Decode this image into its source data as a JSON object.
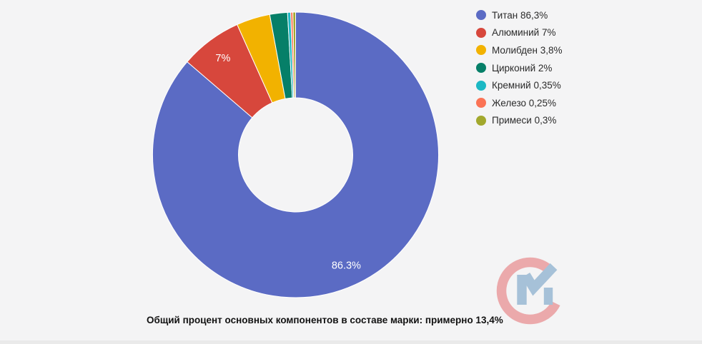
{
  "background": "#f4f4f5",
  "chart_data": {
    "type": "pie",
    "subtype": "donut",
    "start_angle_deg": 0,
    "direction": "clockwise",
    "legend_position": "right",
    "hole_ratio": 0.4,
    "slices": [
      {
        "name": "Титан",
        "value": 86.3,
        "legend_label": "Титан 86,3%",
        "slice_label": "86.3%",
        "color": "#5B6BC4"
      },
      {
        "name": "Алюминий",
        "value": 7,
        "legend_label": "Алюминий 7%",
        "slice_label": "7%",
        "color": "#D7473C"
      },
      {
        "name": "Молибден",
        "value": 3.8,
        "legend_label": "Молибден 3,8%",
        "slice_label": "",
        "color": "#F2B200"
      },
      {
        "name": "Цирконий",
        "value": 2,
        "legend_label": "Цирконий 2%",
        "slice_label": "",
        "color": "#067F68"
      },
      {
        "name": "Кремний",
        "value": 0.35,
        "legend_label": "Кремний 0,35%",
        "slice_label": "",
        "color": "#1CB8C4"
      },
      {
        "name": "Железо",
        "value": 0.25,
        "legend_label": "Железо 0,25%",
        "slice_label": "",
        "color": "#FB7355"
      },
      {
        "name": "Примеси",
        "value": 0.3,
        "legend_label": "Примеси 0,3%",
        "slice_label": "",
        "color": "#A2A82D"
      }
    ]
  },
  "caption": "Общий процент основных компонентов в составе марки: примерно 13,4%",
  "logo": {
    "name": "СМ monogram watermark",
    "c_color": "#EBA9AB",
    "m_color": "#A6C1D8"
  }
}
